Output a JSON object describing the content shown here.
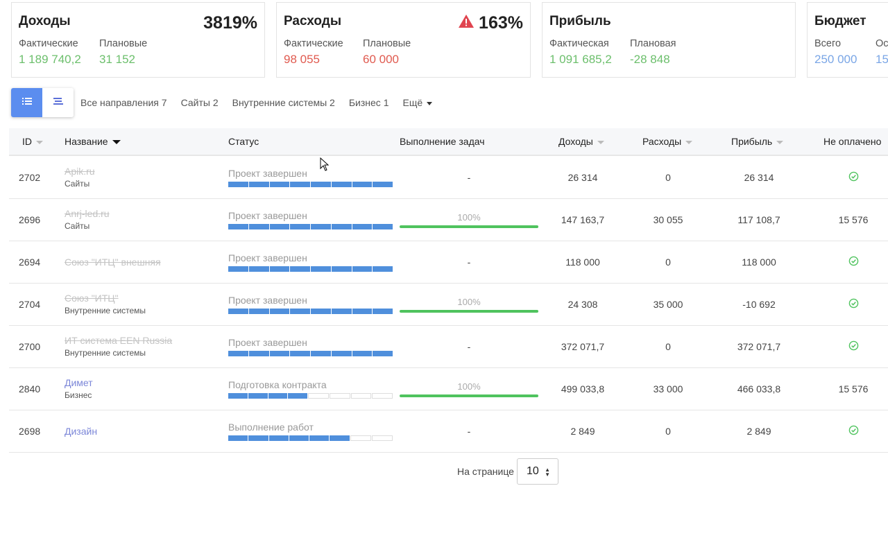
{
  "cards": {
    "income": {
      "title": "Доходы",
      "percent": "3819%",
      "col1_label": "Фактические",
      "col1_value": "1 189 740,2",
      "col2_label": "Плановые",
      "col2_value": "31 152"
    },
    "expenses": {
      "title": "Расходы",
      "percent": "163%",
      "col1_label": "Фактические",
      "col1_value": "98 055",
      "col2_label": "Плановые",
      "col2_value": "60 000"
    },
    "profit": {
      "title": "Прибыль",
      "col1_label": "Фактическая",
      "col1_value": "1 091 685,2",
      "col2_label": "Плановая",
      "col2_value": "-28 848"
    },
    "budget": {
      "title": "Бюджет",
      "col1_label": "Всего",
      "col1_value": "250 000",
      "col2_label": "Ос",
      "col2_value": "15"
    }
  },
  "filters": [
    "Все направления 7",
    "Сайты 2",
    "Внутренние системы 2",
    "Бизнес 1",
    "Ещё"
  ],
  "columns": {
    "id": "ID",
    "name": "Название",
    "status": "Статус",
    "tasks": "Выполнение задач",
    "income": "Доходы",
    "expenses": "Расходы",
    "profit": "Прибыль",
    "unpaid": "Не оплачено"
  },
  "rows": [
    {
      "id": "2702",
      "name": "Apik.ru",
      "category": "Сайты",
      "status": "Проект завершен",
      "progress_segments": 8,
      "task": "-",
      "income": "26 314",
      "expenses": "0",
      "profit": "26 314",
      "unpaid": ""
    },
    {
      "id": "2696",
      "name": "Anrj-led.ru",
      "category": "Сайты",
      "status": "Проект завершен",
      "progress_segments": 8,
      "task": "100%",
      "income": "147 163,7",
      "expenses": "30 055",
      "profit": "117 108,7",
      "unpaid": "15 576"
    },
    {
      "id": "2694",
      "name": "Союз \"ИТЦ\" внешняя",
      "category": "",
      "status": "Проект завершен",
      "progress_segments": 8,
      "task": "-",
      "income": "118 000",
      "expenses": "0",
      "profit": "118 000",
      "unpaid": ""
    },
    {
      "id": "2704",
      "name": "Союз \"ИТЦ\"",
      "category": "Внутренние системы",
      "status": "Проект завершен",
      "progress_segments": 8,
      "task": "100%",
      "income": "24 308",
      "expenses": "35 000",
      "profit": "-10 692",
      "unpaid": ""
    },
    {
      "id": "2700",
      "name": "ИТ система EEN Russia",
      "category": "Внутренние системы",
      "status": "Проект завершен",
      "progress_segments": 8,
      "task": "-",
      "income": "372 071,7",
      "expenses": "0",
      "profit": "372 071,7",
      "unpaid": ""
    },
    {
      "id": "2840",
      "name": "Димет",
      "category": "Бизнес",
      "status": "Подготовка контракта",
      "progress_segments": 4,
      "task": "100%",
      "income": "499 033,8",
      "expenses": "33 000",
      "profit": "466 033,8",
      "unpaid": "15 576"
    },
    {
      "id": "2698",
      "name": "Дизайн",
      "category": "",
      "status": "Выполнение работ",
      "progress_segments": 6,
      "task": "-",
      "income": "2 849",
      "expenses": "0",
      "profit": "2 849",
      "unpaid": ""
    }
  ],
  "pager": {
    "label": "На странице",
    "value": "10"
  },
  "colors": {
    "accent": "#5b8def",
    "positive": "#6cbf6c",
    "negative": "#e05a4f",
    "info": "#7aa6e6",
    "progress": "#4f8fdc",
    "task": "#4fc35e"
  }
}
